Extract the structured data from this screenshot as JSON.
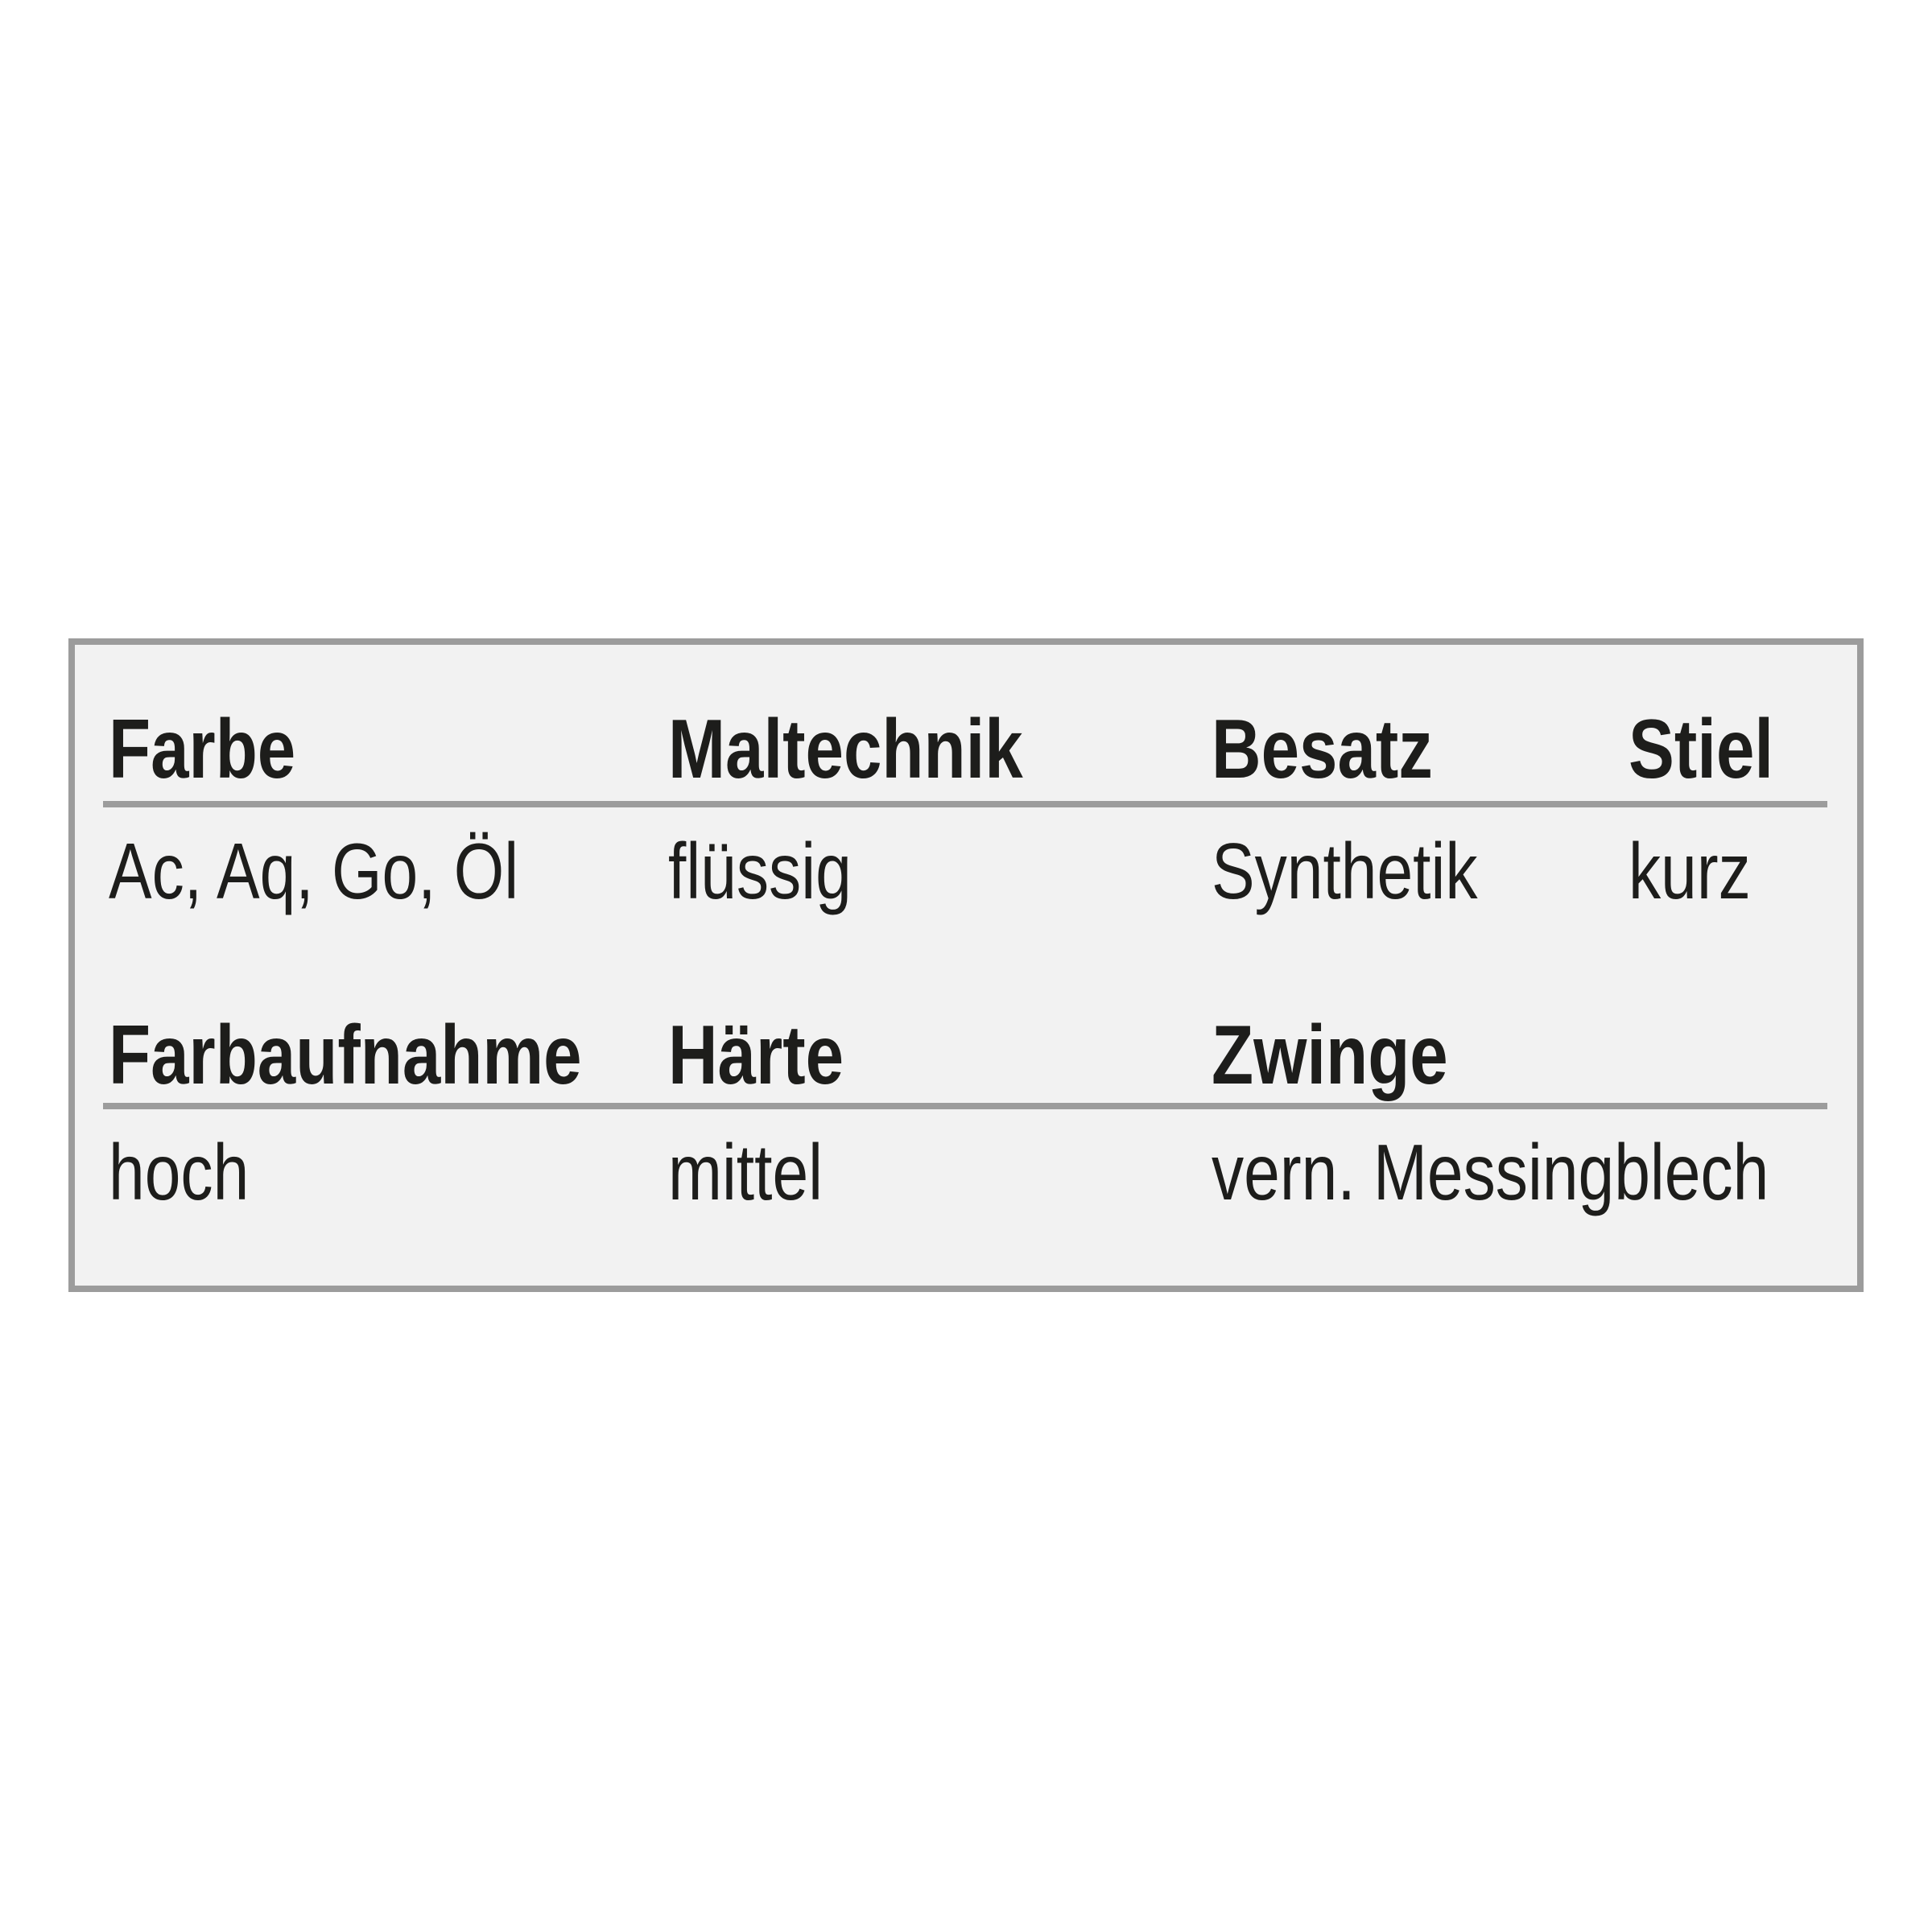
{
  "colors": {
    "page_background": "#ffffff",
    "box_background": "#f2f2f2",
    "box_border": "#9c9c9c",
    "rule": "#9c9c9c",
    "text": "#1d1d1b"
  },
  "spec_table": {
    "sections": [
      {
        "columns": [
          {
            "header": "Farbe",
            "value": "Ac, Aq, Go, Öl"
          },
          {
            "header": "Maltechnik",
            "value": "flüssig"
          },
          {
            "header": "Besatz",
            "value": "Synthetik"
          },
          {
            "header": "Stiel",
            "value": "kurz"
          }
        ]
      },
      {
        "columns": [
          {
            "header": "Farbaufnahme",
            "value": "hoch"
          },
          {
            "header": "Härte",
            "value": "mittel"
          },
          {
            "header": "Zwinge",
            "value": "vern. Messingblech"
          }
        ]
      }
    ]
  }
}
